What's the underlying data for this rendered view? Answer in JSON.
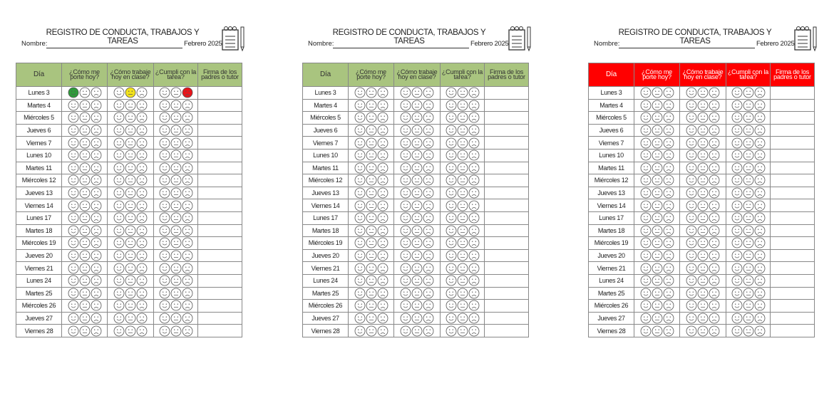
{
  "sheets": [
    {
      "title": "REGISTRO DE CONDUCTA, TRABAJOS Y TAREAS",
      "name_label": "Nombre:",
      "month": "Febrero 2025",
      "header_color": "#a9c47f",
      "header_text_color": "#333333",
      "headers": [
        "Día",
        "¿Cómo me porte hoy?",
        "¿Cómo trabaje hoy en clase?",
        "¿Cumpli con la tarea?",
        "Firma de los padres o tutor"
      ],
      "days": [
        "Lunes 3",
        "Martes 4",
        "Miércoles 5",
        "Jueves 6",
        "Viernes 7",
        "Lunes 10",
        "Martes 11",
        "Miércoles 12",
        "Jueves 13",
        "Viernes 14",
        "Lunes 17",
        "Martes 18",
        "Miércoles 19",
        "Jueves 20",
        "Viernes 21",
        "Lunes 24",
        "Martes 25",
        "Miércoles 26",
        "Jueves 27",
        "Viernes 28"
      ]
    },
    {
      "title": "REGISTRO DE CONDUCTA, TRABAJOS Y TAREAS",
      "name_label": "Nombre:",
      "month": "Febrero 2025",
      "header_color": "#a9c47f",
      "header_text_color": "#333333",
      "headers": [
        "Día",
        "¿Cómo me porte hoy?",
        "¿Cómo trabaje hoy en clase?",
        "¿Cumpli con la tarea?",
        "Firma de los padres o tutor"
      ],
      "days": [
        "Lunes 3",
        "Martes 4",
        "Miércoles 5",
        "Jueves 6",
        "Viernes 7",
        "Lunes 10",
        "Martes 11",
        "Miércoles 12",
        "Jueves 13",
        "Viernes 14",
        "Lunes 17",
        "Martes 18",
        "Miércoles 19",
        "Jueves 20",
        "Viernes 21",
        "Lunes 24",
        "Martes 25",
        "Miércoles 26",
        "Jueves 27",
        "Viernes 28"
      ]
    },
    {
      "title": "REGISTRO DE CONDUCTA, TRABAJOS Y TAREAS",
      "name_label": "Nombre:",
      "month": "Febrero 2025",
      "header_color": "#ff0000",
      "header_text_color": "#ffffff",
      "headers": [
        "Día",
        "¿Cómo me porte hoy?",
        "¿Cómo trabaje hoy en clase?",
        "¿Cumpli con la tarea?",
        "Firma de los padres o tutor"
      ],
      "days": [
        "Lunes 3",
        "Martes 4",
        "Miércoles 5",
        "Jueves 6",
        "Viernes 7",
        "Lunes 10",
        "Martes 11",
        "Miércoles 12",
        "Jueves 13",
        "Viernes 14",
        "Lunes 17",
        "Martes 18",
        "Miércoles 19",
        "Jueves 20",
        "Viernes 21",
        "Lunes 24",
        "Martes 25",
        "Miércoles 26",
        "Jueves 27",
        "Viernes 28"
      ]
    }
  ]
}
